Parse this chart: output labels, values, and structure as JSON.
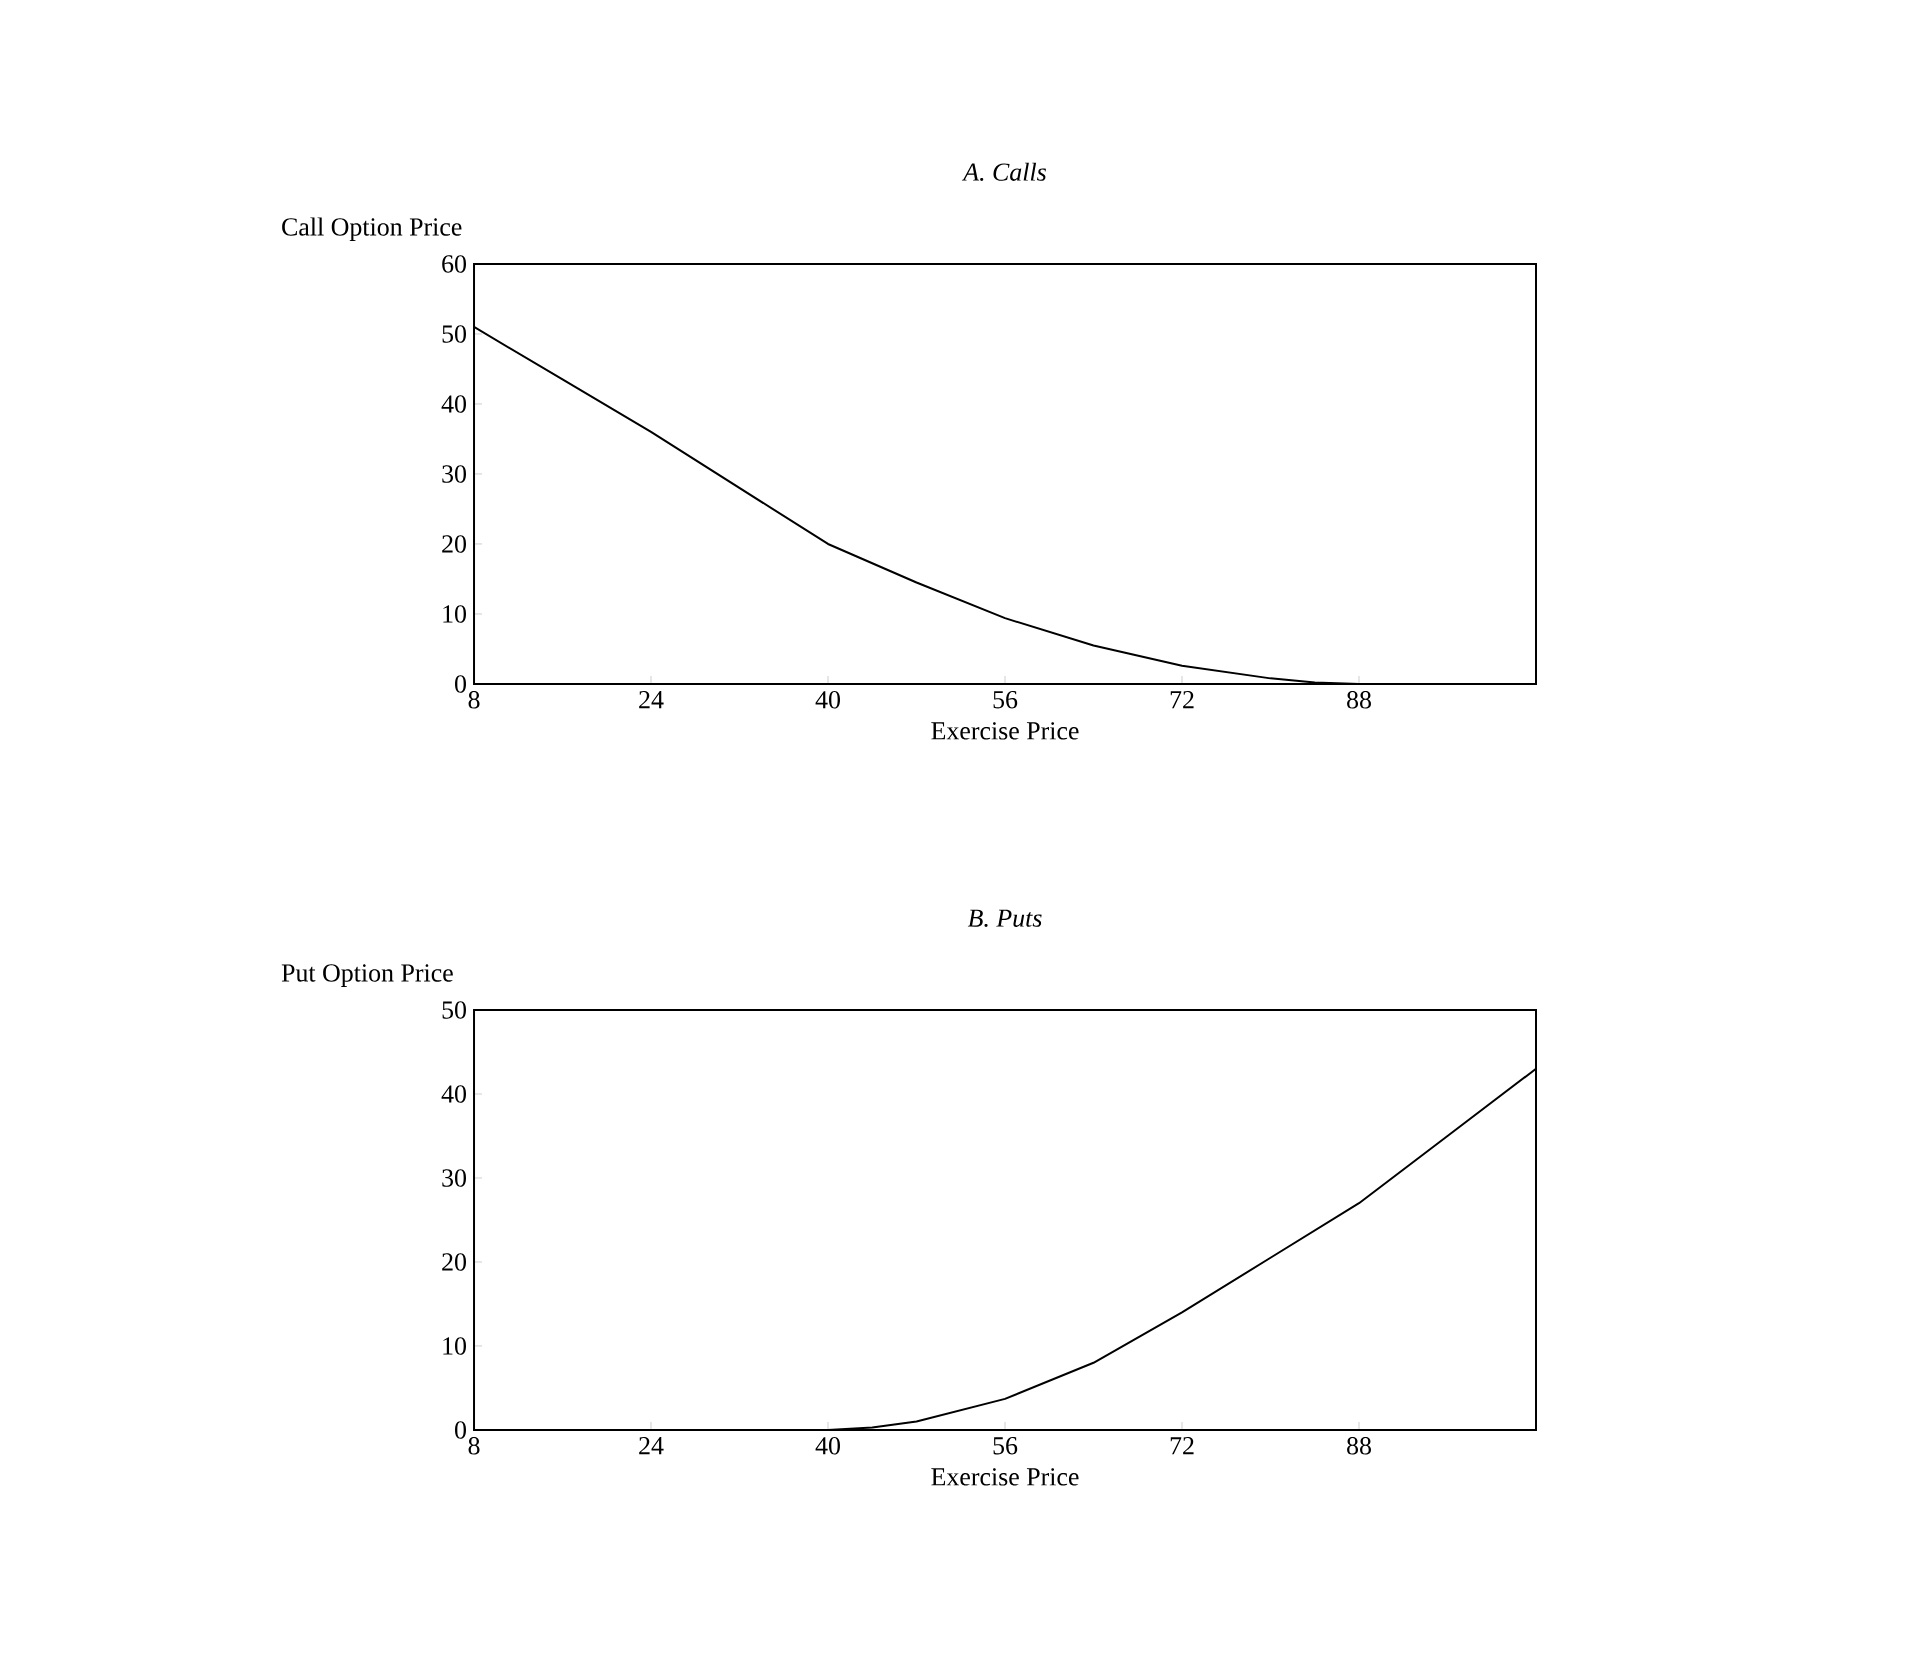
{
  "chart_data": [
    {
      "type": "line",
      "title": "A. Calls",
      "ylabel": "Call Option Price",
      "xlabel": "Exercise Price",
      "x": [
        8,
        16,
        24,
        32,
        40,
        48,
        56,
        64,
        72,
        80,
        84,
        88,
        104
      ],
      "series": [
        {
          "color": "#000000",
          "values": [
            51,
            43.5,
            36,
            28,
            20,
            14.5,
            9.4,
            5.5,
            2.6,
            0.8,
            0.2,
            0,
            0
          ]
        }
      ],
      "xlim": [
        8,
        104
      ],
      "xticks": [
        8,
        24,
        40,
        56,
        72,
        88
      ],
      "ylim": [
        0,
        60
      ],
      "yticks": [
        0,
        10,
        20,
        30,
        40,
        50,
        60
      ],
      "grid": false,
      "marker": "none",
      "line_style": "solid"
    },
    {
      "type": "line",
      "title": "B. Puts",
      "ylabel": "Put Option Price",
      "xlabel": "Exercise Price",
      "x": [
        8,
        40,
        44,
        48,
        56,
        64,
        72,
        80,
        88,
        96,
        104
      ],
      "series": [
        {
          "color": "#000000",
          "values": [
            0,
            0,
            0.3,
            1,
            3.7,
            8,
            14,
            20.5,
            27,
            35,
            43
          ]
        }
      ],
      "xlim": [
        8,
        104
      ],
      "xticks": [
        8,
        24,
        40,
        56,
        72,
        88
      ],
      "ylim": [
        0,
        50
      ],
      "yticks": [
        0,
        10,
        20,
        30,
        40,
        50
      ],
      "grid": false,
      "marker": "none",
      "line_style": "solid"
    }
  ]
}
